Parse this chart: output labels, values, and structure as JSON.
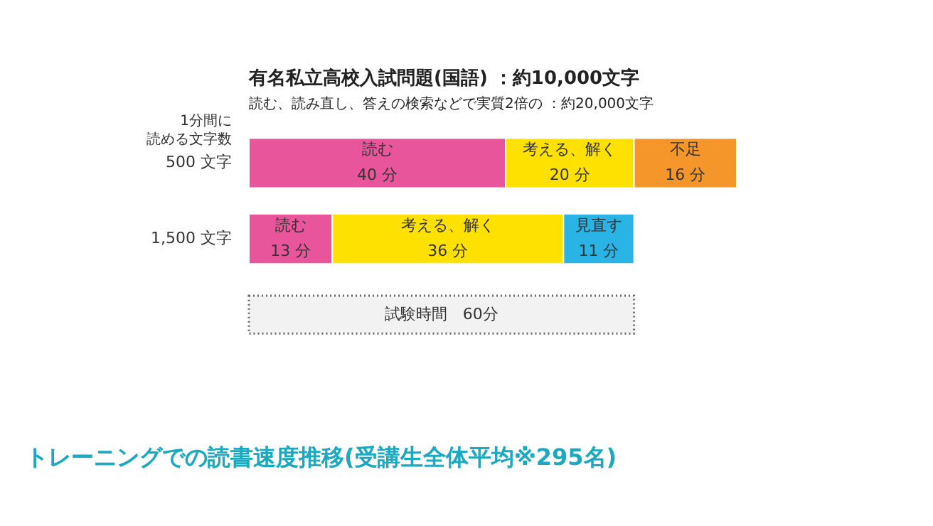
{
  "chart_data": {
    "type": "bar",
    "orientation": "horizontal",
    "stacked": true,
    "title": "有名私立高校入試問題(国語) ：約10,000文字",
    "subtitle": "読む、読み直し、答えの検索などで実質2倍の ：約20,000文字",
    "ylabel": "1分間に読める文字数",
    "categories": [
      "500 文字",
      "1,500 文字"
    ],
    "series": [
      {
        "name": "読む",
        "color": "#e8559a",
        "values": [
          40,
          13
        ],
        "value_labels": [
          "40 分",
          "13 分"
        ]
      },
      {
        "name": "考える、解く",
        "color": "#ffe100",
        "values": [
          20,
          36
        ],
        "value_labels": [
          "20 分",
          "36 分"
        ]
      },
      {
        "name": "不足",
        "color": "#f5962a",
        "values": [
          16,
          null
        ],
        "value_labels": [
          "16 分",
          null
        ]
      },
      {
        "name": "見直す",
        "color": "#2ab4e6",
        "values": [
          null,
          11
        ],
        "value_labels": [
          null,
          "11 分"
        ]
      }
    ],
    "bands": [
      {
        "axis": "x",
        "from": 0,
        "to": 60,
        "label": "試験時間　60分",
        "color": "#f2f2f2"
      }
    ],
    "annotations": [
      "トレーニングでの読書速度推移(受講生全体平均※295名)"
    ],
    "legend": false
  }
}
